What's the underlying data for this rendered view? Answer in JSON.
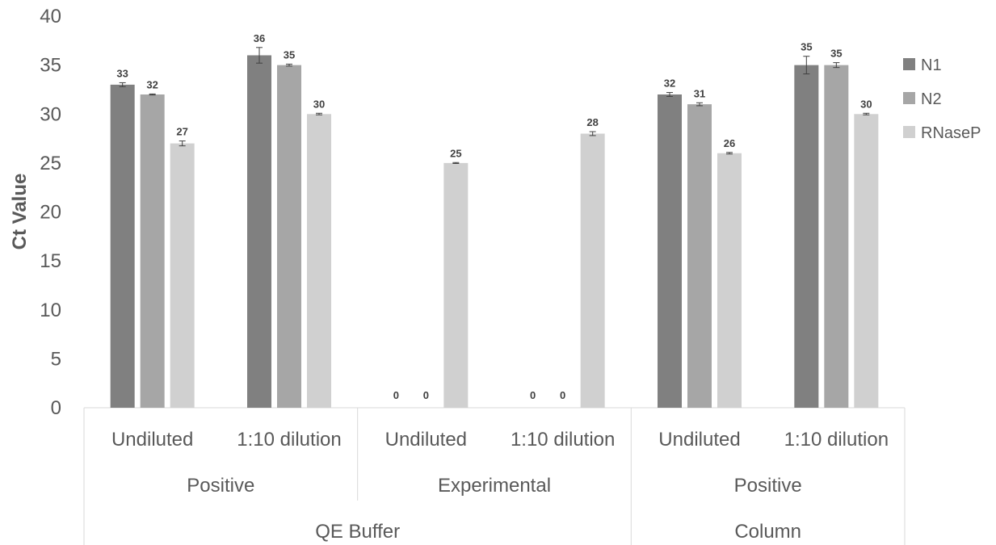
{
  "chart_data": {
    "type": "bar",
    "title": "",
    "xlabel": "",
    "ylabel": "Ct Value",
    "ylim": [
      0,
      40
    ],
    "yticks": [
      0,
      5,
      10,
      15,
      20,
      25,
      30,
      35,
      40
    ],
    "grid": false,
    "legend_position": "right",
    "categories": [
      {
        "label": "Undiluted",
        "group": "Positive",
        "supergroup": "QE Buffer"
      },
      {
        "label": "1:10 dilution",
        "group": "Positive",
        "supergroup": "QE Buffer"
      },
      {
        "label": "Undiluted",
        "group": "Experimental",
        "supergroup": "QE Buffer"
      },
      {
        "label": "1:10 dilution",
        "group": "Experimental",
        "supergroup": "QE Buffer"
      },
      {
        "label": "Undiluted",
        "group": "Positive",
        "supergroup": "Column"
      },
      {
        "label": "1:10 dilution",
        "group": "Positive",
        "supergroup": "Column"
      }
    ],
    "groups": [
      {
        "label": "Positive",
        "span": [
          0,
          1
        ]
      },
      {
        "label": "Experimental",
        "span": [
          2,
          3
        ]
      },
      {
        "label": "Positive",
        "span": [
          4,
          5
        ]
      }
    ],
    "supergroups": [
      {
        "label": "QE Buffer",
        "span": [
          0,
          3
        ]
      },
      {
        "label": "Column",
        "span": [
          4,
          5
        ]
      }
    ],
    "series": [
      {
        "name": "N1",
        "color": "#808080",
        "values": [
          33,
          36,
          0,
          0,
          32,
          35
        ],
        "labels": [
          "33",
          "36",
          "0",
          "0",
          "32",
          "35"
        ],
        "errors": [
          0.2,
          0.8,
          0,
          0,
          0.2,
          0.9
        ]
      },
      {
        "name": "N2",
        "color": "#a6a6a6",
        "values": [
          32,
          35,
          0,
          0,
          31,
          35
        ],
        "labels": [
          "32",
          "35",
          "0",
          "0",
          "31",
          "35"
        ],
        "errors": [
          0.05,
          0.1,
          0,
          0,
          0.15,
          0.25
        ]
      },
      {
        "name": "RNaseP",
        "color": "#d0d0d0",
        "values": [
          27,
          30,
          25,
          28,
          26,
          30
        ],
        "labels": [
          "27",
          "30",
          "25",
          "28",
          "26",
          "30"
        ],
        "errors": [
          0.25,
          0.08,
          0.05,
          0.2,
          0.08,
          0.08
        ]
      }
    ]
  }
}
